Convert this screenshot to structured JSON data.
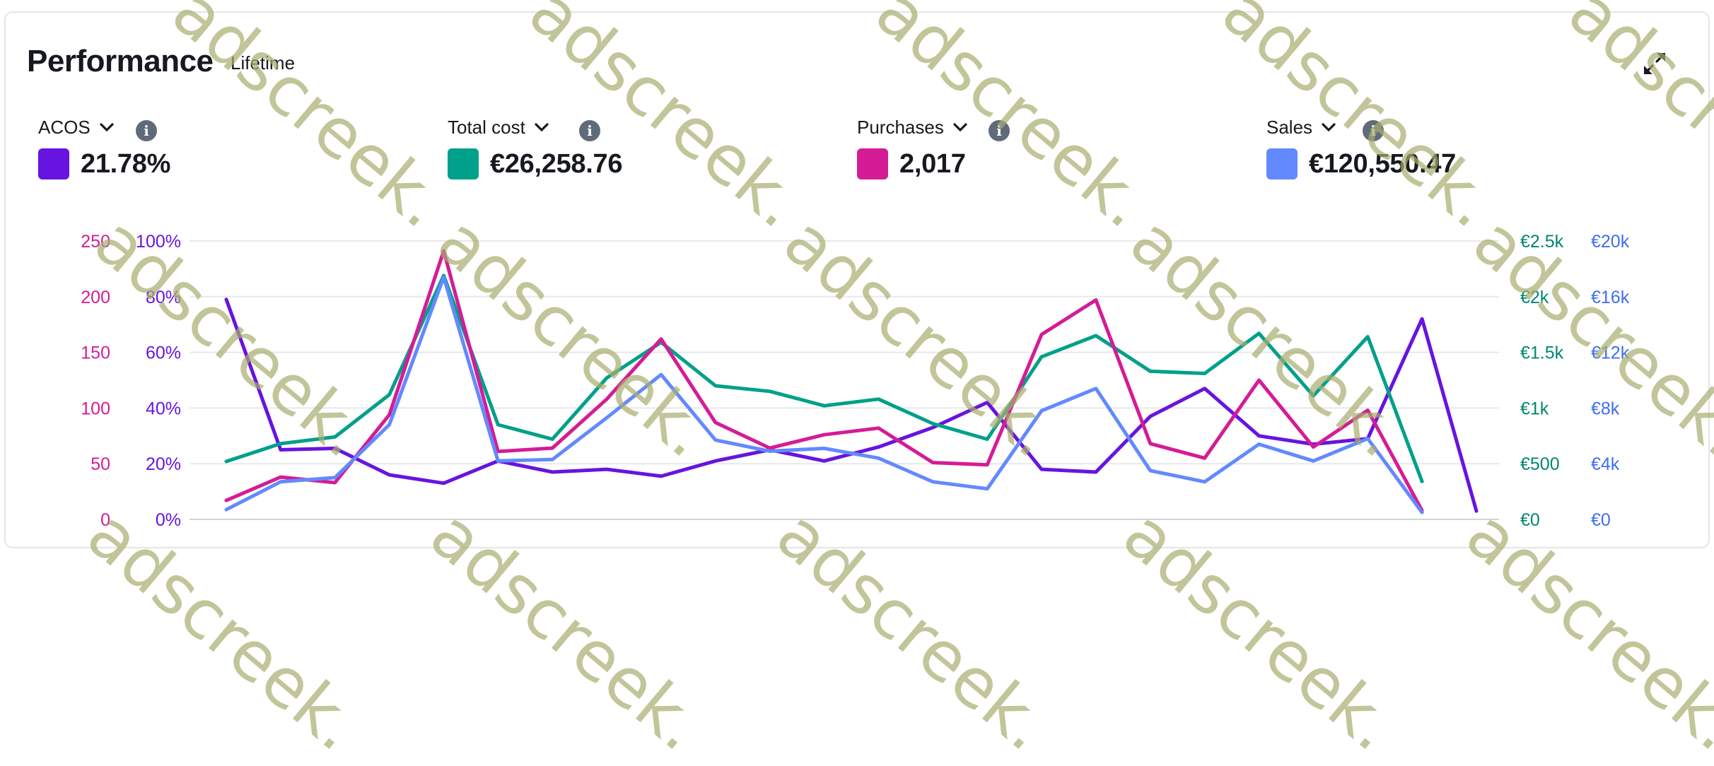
{
  "header": {
    "title": "Performance",
    "subtitle": "Lifetime",
    "expand_icon": "expand-arrows-icon"
  },
  "metrics": [
    {
      "label": "ACOS",
      "value": "21.78%",
      "color": "#6714e0"
    },
    {
      "label": "Total cost",
      "value": "€26,258.76",
      "color": "#00a08a"
    },
    {
      "label": "Purchases",
      "value": "2,017",
      "color": "#d41c96"
    },
    {
      "label": "Sales",
      "value": "€120,550.47",
      "color": "#6389ff"
    }
  ],
  "watermark": "adscreek.",
  "chart_data": {
    "type": "line",
    "x_count": 24,
    "axes": {
      "purchases": {
        "ticks": [
          "0",
          "50",
          "100",
          "150",
          "200",
          "250"
        ],
        "range": [
          0,
          250
        ],
        "color": "#d41c96"
      },
      "acos": {
        "ticks": [
          "0%",
          "20%",
          "40%",
          "60%",
          "80%",
          "100%"
        ],
        "range": [
          0,
          100
        ],
        "color": "#6714e0"
      },
      "cost": {
        "ticks": [
          "€0",
          "€500",
          "€1k",
          "€1.5k",
          "€2k",
          "€2.5k"
        ],
        "range": [
          0,
          2500
        ],
        "color": "#00876f"
      },
      "sales": {
        "ticks": [
          "€0",
          "€4k",
          "€8k",
          "€12k",
          "€16k",
          "€20k"
        ],
        "range": [
          0,
          20000
        ],
        "color": "#3f6ff0"
      }
    },
    "grid": true,
    "series": [
      {
        "name": "ACOS",
        "axis": "acos",
        "color": "#6714e0",
        "values": [
          79,
          25,
          25.5,
          16,
          13,
          21,
          17,
          18,
          15.5,
          21,
          25,
          21,
          26,
          33,
          42,
          18,
          17,
          37,
          47,
          30,
          27,
          29,
          72,
          3
        ]
      },
      {
        "name": "Total cost",
        "axis": "cost",
        "color": "#00a08a",
        "values": [
          520,
          680,
          740,
          1120,
          2190,
          850,
          720,
          1270,
          1590,
          1200,
          1150,
          1020,
          1080,
          860,
          720,
          1460,
          1650,
          1330,
          1310,
          1670,
          1110,
          1640,
          340,
          null
        ]
      },
      {
        "name": "Purchases",
        "axis": "purchases",
        "color": "#d41c96",
        "values": [
          17,
          38,
          33,
          94,
          241,
          61,
          64,
          108,
          162,
          87,
          64,
          76,
          82,
          51,
          49,
          166,
          197,
          68,
          55,
          125,
          65,
          98,
          8,
          null
        ]
      },
      {
        "name": "Sales",
        "axis": "sales",
        "color": "#6389ff",
        "values": [
          700,
          2700,
          3000,
          6800,
          17400,
          4200,
          4300,
          7300,
          10400,
          5700,
          4900,
          5100,
          4400,
          2700,
          2200,
          7800,
          9400,
          3500,
          2700,
          5400,
          4200,
          5800,
          500,
          null
        ]
      }
    ]
  }
}
